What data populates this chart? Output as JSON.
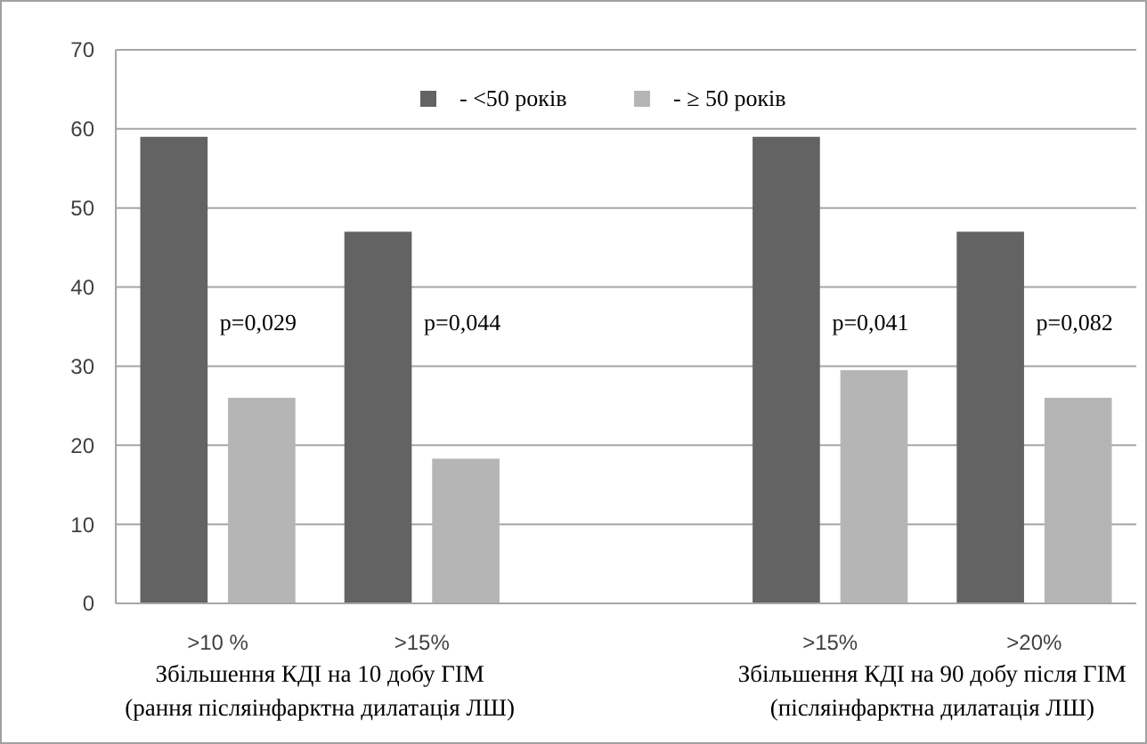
{
  "chart_data": {
    "type": "bar",
    "categories": [
      ">10 %",
      ">15%",
      null,
      ">15%",
      ">20%"
    ],
    "series": [
      {
        "name": "- <50 років",
        "color": "#636363",
        "values": [
          59,
          47,
          null,
          59,
          47
        ]
      },
      {
        "name": "- ≥ 50 років",
        "color": "#b5b5b5",
        "values": [
          26,
          18.3,
          null,
          29.5,
          26
        ]
      }
    ],
    "ylim": [
      0,
      70
    ],
    "yticks": [
      0,
      10,
      20,
      30,
      40,
      50,
      60,
      70
    ],
    "grid": "y",
    "legend": "top",
    "annotations": [
      "p=0,029",
      "p=0,044",
      "p=0,041",
      "p=0,082",
      "Збільшення КДІ на 10 добу ГІМ (рання післяінфарктна дилатація ЛШ)",
      "Збільшення КДІ на 90 добу після ГІМ (післяінфарктна дилатація ЛШ)"
    ]
  }
}
